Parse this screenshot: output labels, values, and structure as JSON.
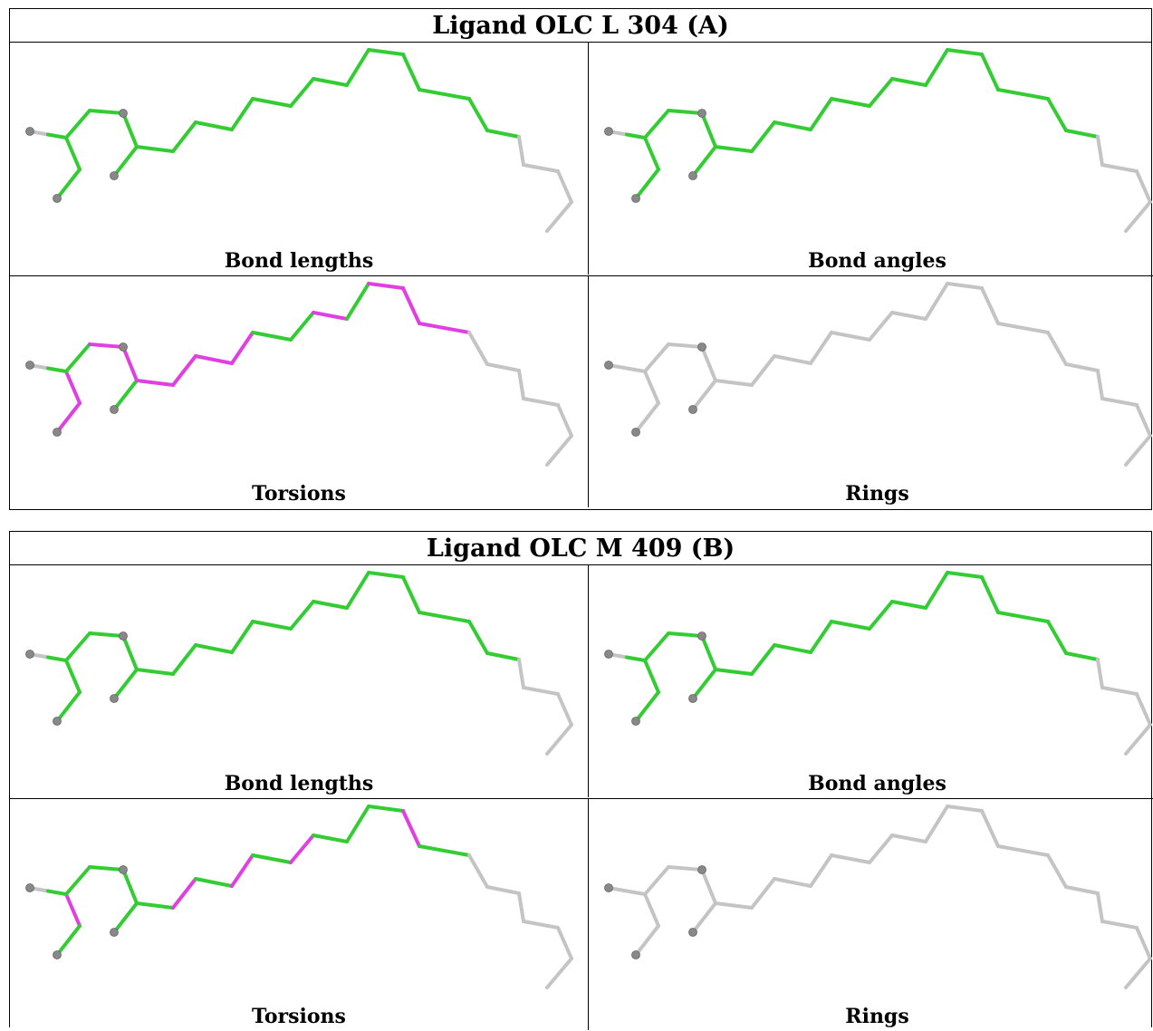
{
  "ligands": [
    {
      "title": "Ligand OLC L 304 (A)",
      "cells": [
        {
          "label": "Bond lengths",
          "bonds": [
            "ox",
            "g",
            "g",
            "g",
            "g",
            "g",
            "g",
            "g",
            "g",
            "g",
            "g",
            "g",
            "g",
            "g",
            "g",
            "g",
            "g",
            "g",
            "g",
            "g"
          ]
        },
        {
          "label": "Bond angles",
          "bonds": [
            "ox",
            "g",
            "g",
            "g",
            "g",
            "g",
            "g",
            "g",
            "g",
            "g",
            "g",
            "g",
            "g",
            "g",
            "g",
            "g",
            "g",
            "g",
            "g",
            "g"
          ]
        },
        {
          "label": "Torsions",
          "bonds": [
            "ox",
            "m",
            "m",
            "g",
            "m",
            "m",
            "g",
            "m",
            "m",
            "m",
            "m",
            "g",
            "g",
            "m",
            "g",
            "m",
            "m",
            "m",
            "x",
            "x"
          ]
        },
        {
          "label": "Rings",
          "bonds": [
            "x",
            "x",
            "x",
            "x",
            "x",
            "x",
            "x",
            "x",
            "x",
            "x",
            "x",
            "x",
            "x",
            "x",
            "x",
            "x",
            "x",
            "x",
            "x",
            "x"
          ]
        }
      ]
    },
    {
      "title": "Ligand OLC M 409 (B)",
      "cells": [
        {
          "label": "Bond lengths",
          "bonds": [
            "ox",
            "g",
            "g",
            "g",
            "g",
            "g",
            "g",
            "g",
            "g",
            "g",
            "g",
            "g",
            "g",
            "g",
            "g",
            "g",
            "g",
            "g",
            "g",
            "g"
          ]
        },
        {
          "label": "Bond angles",
          "bonds": [
            "ox",
            "g",
            "g",
            "g",
            "g",
            "g",
            "g",
            "g",
            "g",
            "g",
            "g",
            "g",
            "g",
            "g",
            "g",
            "g",
            "g",
            "g",
            "g",
            "g"
          ]
        },
        {
          "label": "Torsions",
          "bonds": [
            "ox",
            "m",
            "g",
            "g",
            "g",
            "g",
            "g",
            "g",
            "m",
            "g",
            "m",
            "g",
            "m",
            "g",
            "g",
            "g",
            "m",
            "g",
            "x",
            "x"
          ]
        },
        {
          "label": "Rings",
          "bonds": [
            "x",
            "x",
            "x",
            "x",
            "x",
            "x",
            "x",
            "x",
            "x",
            "x",
            "x",
            "x",
            "x",
            "x",
            "x",
            "x",
            "x",
            "x",
            "x",
            "x"
          ]
        }
      ]
    }
  ],
  "colors": {
    "green": "#33cc33",
    "magenta": "#e040e0",
    "grey": "#c4c4c4",
    "atom": "#888888"
  }
}
